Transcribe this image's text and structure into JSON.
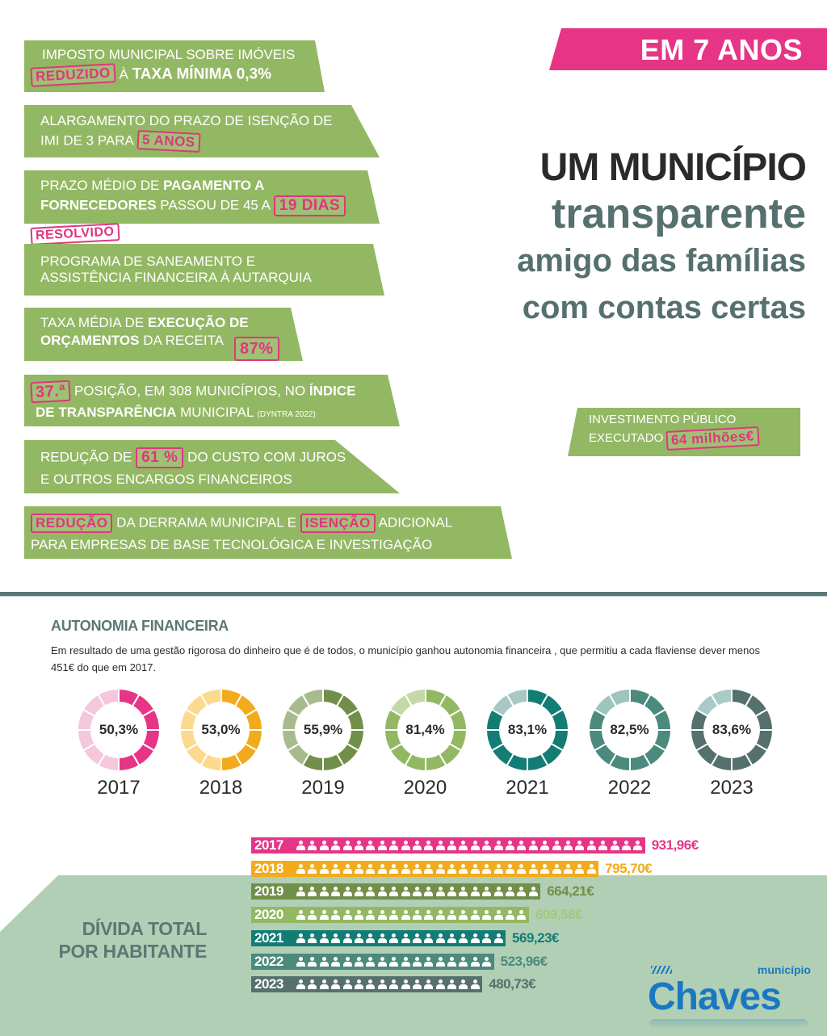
{
  "header": {
    "badge": "EM 7 ANOS",
    "headline_line1": "UM MUNICÍPIO",
    "headline_line2": "transparente",
    "headline_line3": "amigo das famílias",
    "headline_line4": "com contas certas"
  },
  "banners": {
    "imi": {
      "text1": "IMPOSTO MUNICIPAL SOBRE IMÓVEIS",
      "stamp": "REDUZIDO",
      "text2": " À ",
      "bold": "TAXA MÍNIMA 0,3%"
    },
    "isencao": {
      "text1": "ALARGAMENTO DO PRAZO DE ISENÇÃO DE",
      "text2": "IMI DE 3 PARA ",
      "stamp": "5 ANOS"
    },
    "prazo": {
      "text1": "PRAZO MÉDIO DE ",
      "bold1": "PAGAMENTO A",
      "bold2": "FORNECEDORES",
      "text2": " PASSOU DE 45 A ",
      "stamp": "19 DIAS"
    },
    "saneamento": {
      "stamp": "RESOLVIDO",
      "text1": "PROGRAMA DE SANEAMENTO E",
      "text2": "ASSISTÊNCIA FINANCEIRA À AUTARQUIA"
    },
    "execucao": {
      "text1": "TAXA MÉDIA DE ",
      "bold1": "EXECUÇÃO DE",
      "bold2": "ORÇAMENTOS",
      "text2": " DA RECEITA ",
      "stamp": "87%"
    },
    "transparencia": {
      "stamp": "37.ª",
      "text1": " POSIÇÃO, EM 308 MUNICÍPIOS, NO ",
      "bold1": "ÍNDICE",
      "bold2": "DE TRANSPARÊNCIA",
      "text2": " MUNICIPAL ",
      "small": "(DYNTRA 2022)"
    },
    "juros": {
      "text1": "REDUÇÃO DE ",
      "stamp": "61 %",
      "text2": " DO CUSTO COM JUROS",
      "text3": "E OUTROS ENCARGOS FINANCEIROS"
    },
    "derrama": {
      "stamp1": "REDUÇÃO",
      "text1": " DA DERRAMA MUNICIPAL E ",
      "stamp2": "ISENÇÃO",
      "text2": "  ADICIONAL",
      "text3": "PARA  EMPRESAS DE BASE TECNOLÓGICA E INVESTIGAÇÃO"
    }
  },
  "investimento": {
    "text1": "INVESTIMENTO PÚBLICO",
    "text2": "EXECUTADO ",
    "stamp": "64 milhões€"
  },
  "autonomia": {
    "title": "AUTONOMIA FINANCEIRA",
    "description": "Em resultado de uma gestão rigorosa do dinheiro que é de todos, o município ganhou autonomia financeira , que permitiu a cada flaviense dever menos 451€ do que em 2017."
  },
  "chart_data": [
    {
      "type": "pie",
      "title": "AUTONOMIA FINANCEIRA",
      "categories": [
        "2017",
        "2018",
        "2019",
        "2020",
        "2021",
        "2022",
        "2023"
      ],
      "values": [
        50.3,
        53.0,
        55.9,
        81.4,
        83.1,
        82.5,
        83.6
      ],
      "labels": [
        "50,3%",
        "53,0%",
        "55,9%",
        "81,4%",
        "83,1%",
        "82,5%",
        "83,6%"
      ],
      "unit": "%",
      "segments": 12,
      "colors": [
        "#e63586",
        "#f2ab1c",
        "#728f4a",
        "#93b863",
        "#137d75",
        "#4b8a7d",
        "#56706e"
      ],
      "light_colors": [
        "#f5c7dc",
        "#fbd98f",
        "#a8bb8e",
        "#c5d9a8",
        "#a8c8c4",
        "#9ec5bc",
        "#a9cbc7"
      ]
    },
    {
      "type": "bar",
      "title": "DÍVIDA TOTAL POR HABITANTE",
      "categories": [
        "2017",
        "2018",
        "2019",
        "2020",
        "2021",
        "2022",
        "2023"
      ],
      "values": [
        931.96,
        795.7,
        664.21,
        609.58,
        569.23,
        523.96,
        480.73
      ],
      "labels": [
        "931,96€",
        "795,70€",
        "664,21€",
        "609,58€",
        "569,23€",
        "523,96€",
        "480,73€"
      ],
      "icon_counts": [
        30,
        26,
        21,
        20,
        18,
        17,
        16
      ],
      "colors": [
        "#e63586",
        "#f2ab1c",
        "#728f4a",
        "#93b863",
        "#137d75",
        "#4b8a7d",
        "#56706e"
      ],
      "label_colors": [
        "#e63586",
        "#f2ab1c",
        "#728f4a",
        "#a6c77b",
        "#137d75",
        "#4b8a7d",
        "#56706e"
      ]
    }
  ],
  "divida": {
    "title_line1": "DÍVIDA TOTAL",
    "title_line2": "POR HABITANTE"
  },
  "logo": {
    "small": "município",
    "name": "Chaves"
  }
}
